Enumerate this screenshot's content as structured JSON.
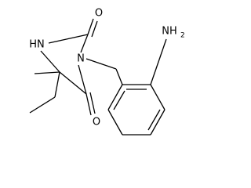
{
  "atoms": [
    {
      "label": "O"
    },
    {
      "label": "HN"
    },
    {
      "label": "N"
    },
    {
      "label": "O"
    },
    {
      "label": "NH",
      "subscript": "2"
    }
  ]
}
